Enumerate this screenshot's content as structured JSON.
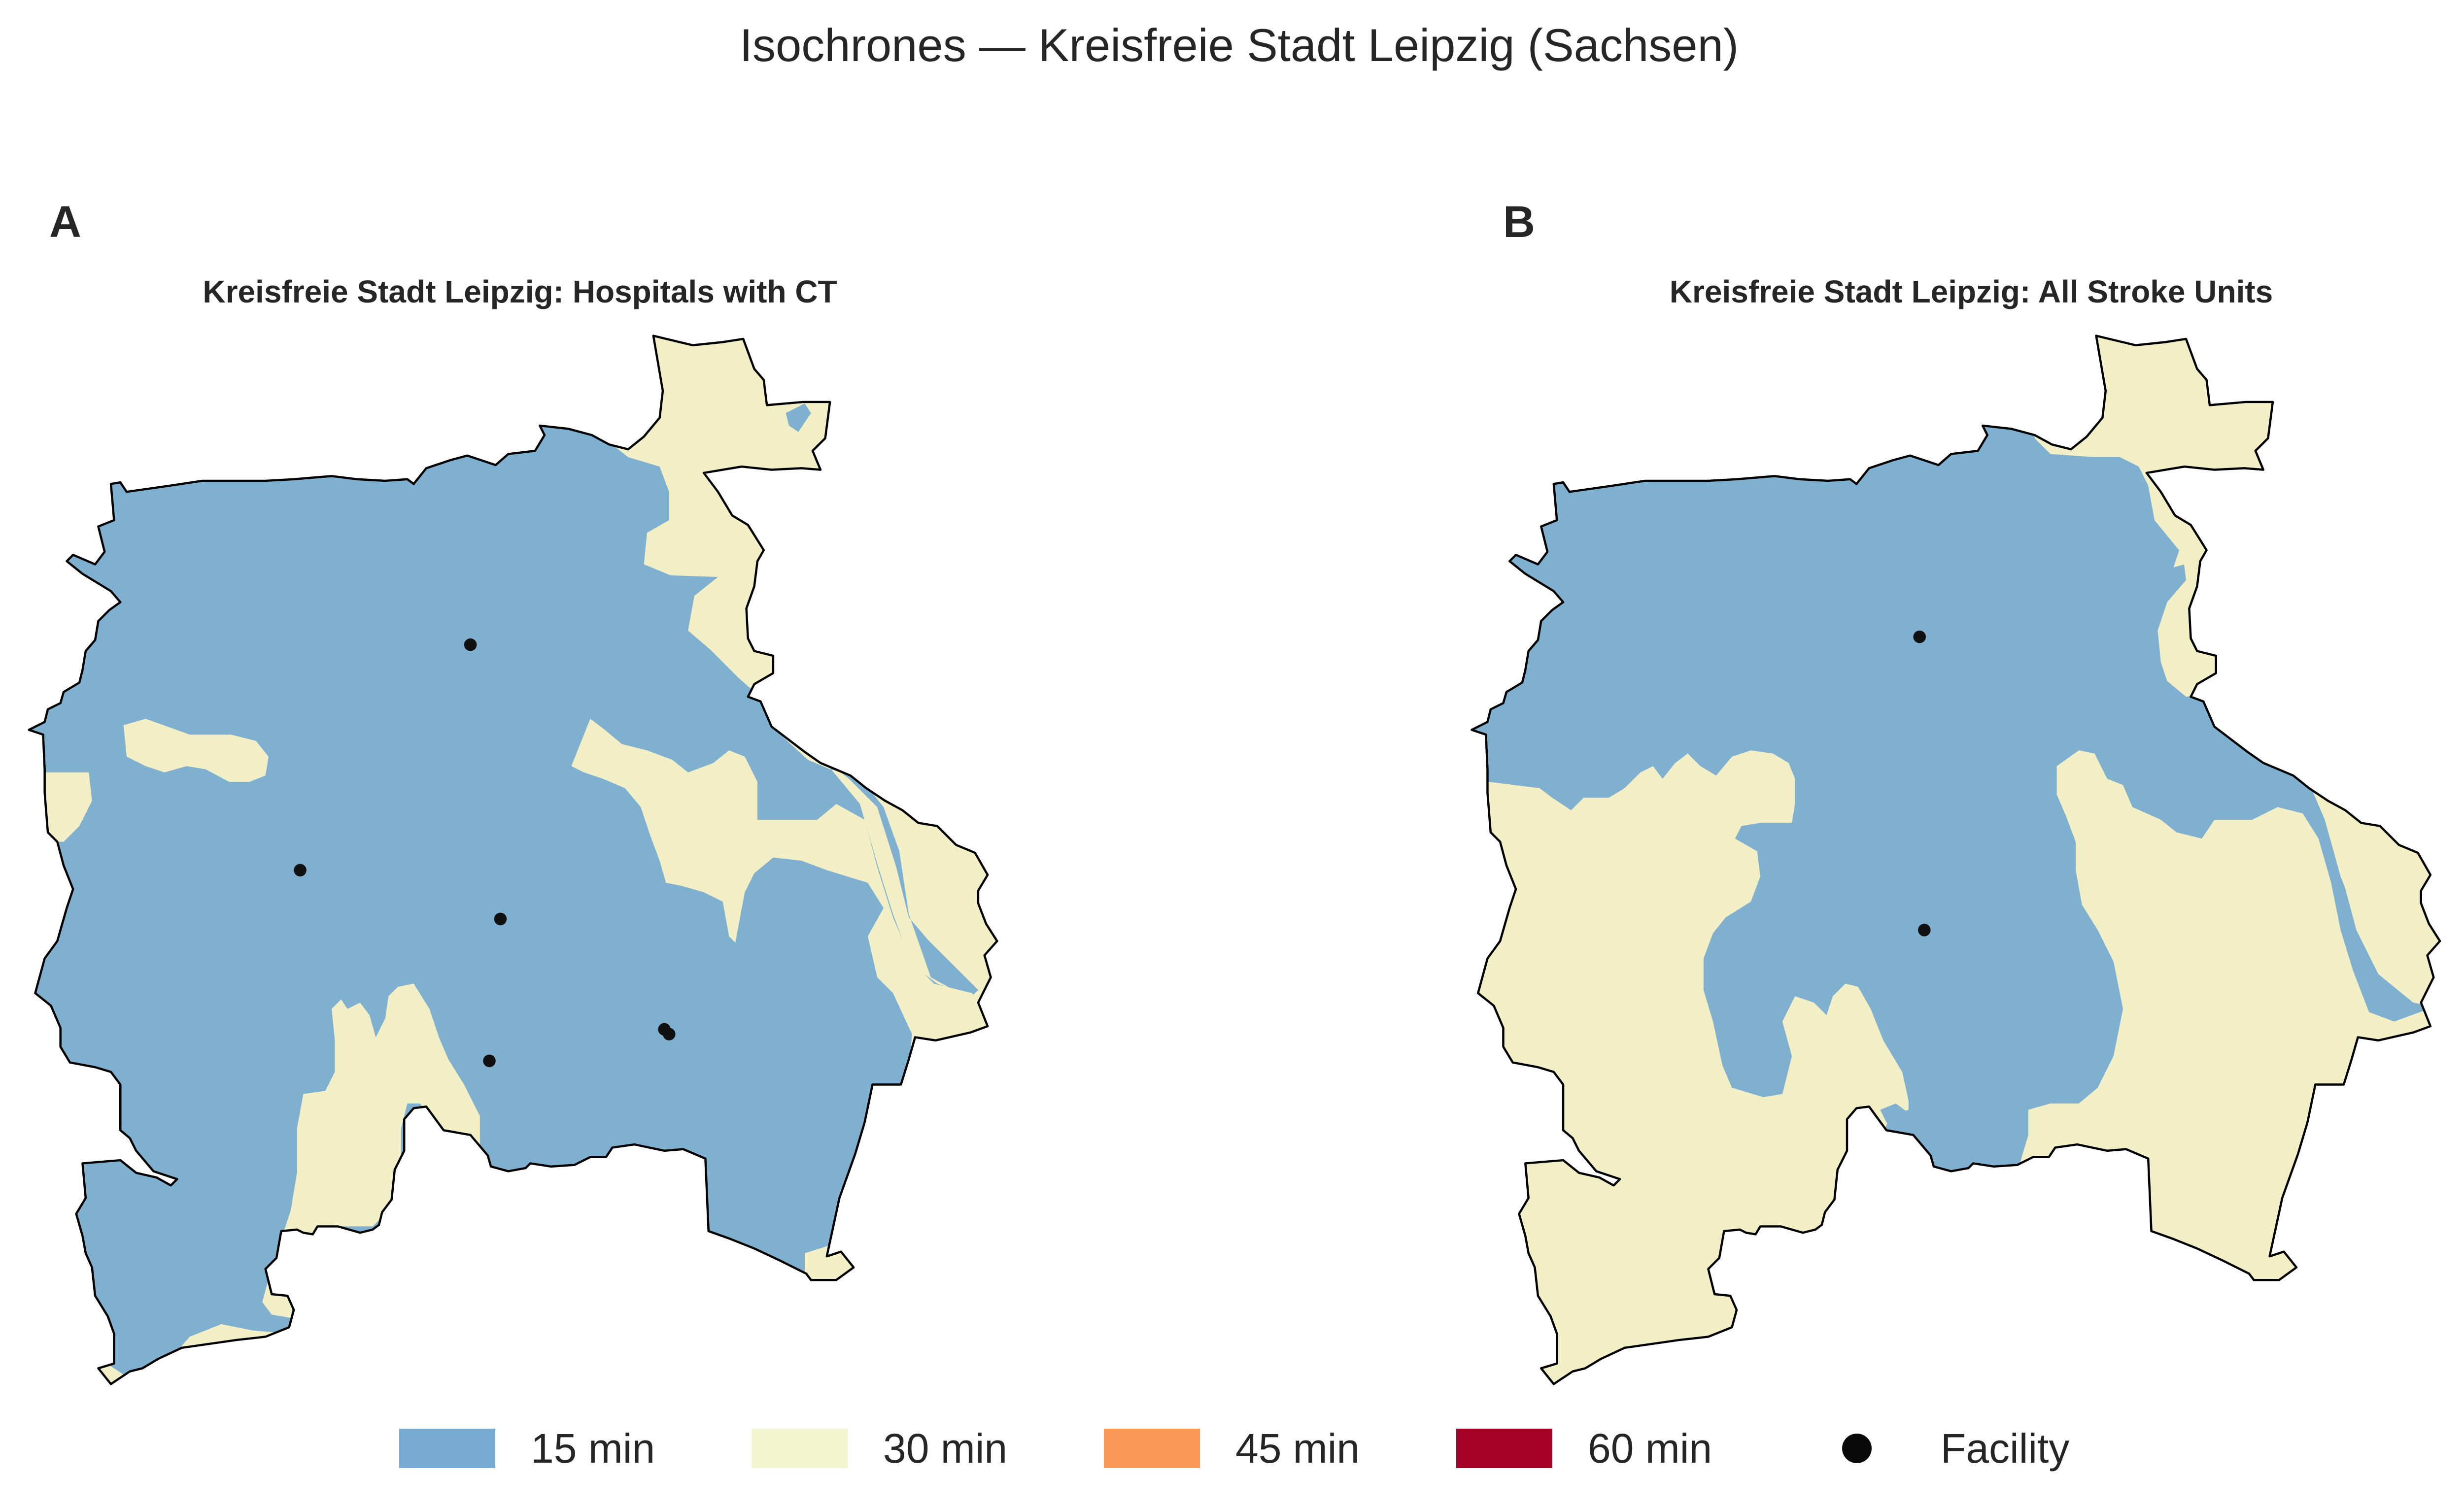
{
  "title": "Isochrones — Kreisfreie Stadt Leipzig (Sachsen)",
  "colors": {
    "min15": "#7fb0cf",
    "min30": "#f2eec6",
    "min45": "#fc9a5c",
    "min60": "#a50026",
    "facility": "#111111",
    "boundary": "#000000"
  },
  "panels": [
    {
      "letter": "A",
      "title": "Kreisfreie Stadt Leipzig: Hospitals with CT",
      "facility_count": 6
    },
    {
      "letter": "B",
      "title": "Kreisfreie Stadt Leipzig: All Stroke Units",
      "facility_count": 2
    }
  ],
  "legend": [
    {
      "label": "15 min",
      "color": "#77abd1",
      "kind": "swatch"
    },
    {
      "label": "30 min",
      "color": "#f2f6d0",
      "kind": "swatch"
    },
    {
      "label": "45 min",
      "color": "#fa9857",
      "kind": "swatch"
    },
    {
      "label": "60 min",
      "color": "#a50026",
      "kind": "swatch"
    },
    {
      "label": "Facility",
      "color": "#0a0a0a",
      "kind": "marker"
    }
  ]
}
